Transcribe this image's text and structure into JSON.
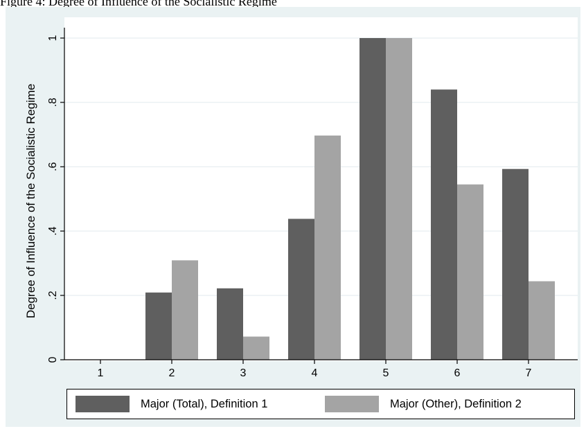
{
  "top_text": "Figure 4: Degree of Influence of the Socialistic Regime",
  "chart_data": {
    "type": "bar",
    "title": "",
    "xlabel": "",
    "ylabel": "Degree of Influence of the Socialistic Regime",
    "categories": [
      "1",
      "2",
      "3",
      "4",
      "5",
      "6",
      "7"
    ],
    "ylim": [
      0,
      1
    ],
    "yticks": [
      0,
      0.2,
      0.4,
      0.6,
      0.8,
      1
    ],
    "ytick_labels": [
      "0",
      ".2",
      ".4",
      ".6",
      ".8",
      "1"
    ],
    "grid": true,
    "legend_position": "bottom",
    "series": [
      {
        "name": "Major (Total), Definition 1",
        "color": "#5f5f5f",
        "values": [
          0,
          0.209,
          0.222,
          0.438,
          1.0,
          0.84,
          0.593
        ]
      },
      {
        "name": "Major (Other), Definition 2",
        "color": "#a4a4a4",
        "values": [
          0,
          0.309,
          0.072,
          0.697,
          1.0,
          0.545,
          0.244
        ]
      }
    ]
  },
  "legend": {
    "items": [
      {
        "label": "Major (Total), Definition 1",
        "color": "#5f5f5f"
      },
      {
        "label": "Major (Other), Definition 2",
        "color": "#a4a4a4"
      }
    ]
  }
}
